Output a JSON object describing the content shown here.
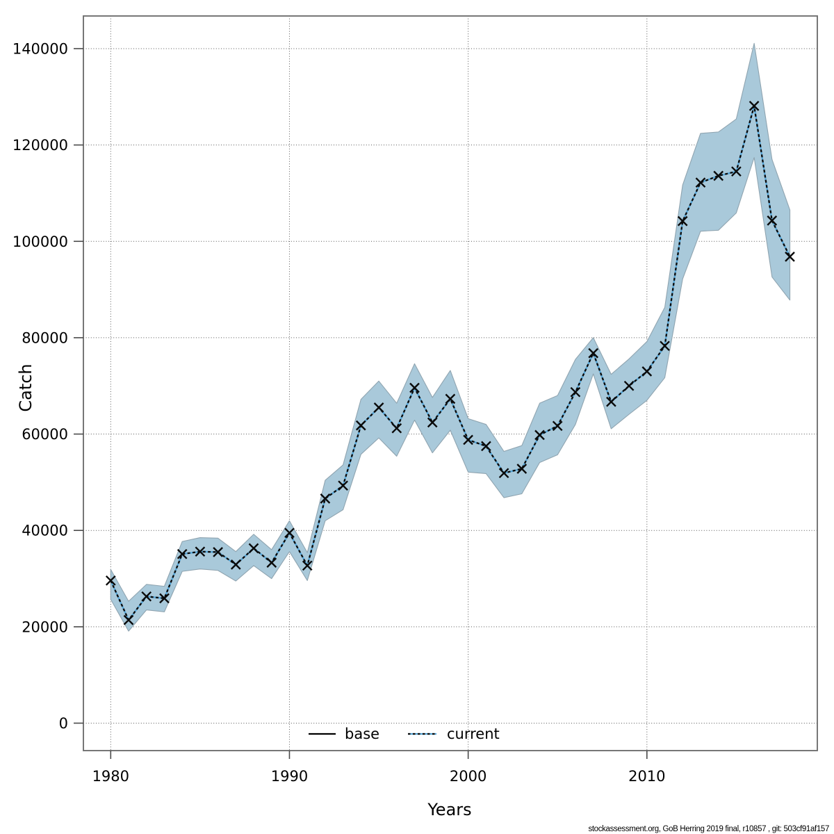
{
  "page": {
    "background": "#ffffff"
  },
  "axes": {
    "x_label": "Years",
    "y_label": "Catch",
    "x_tick_years": [
      1980,
      1990,
      2000,
      2010
    ],
    "y_ticks": [
      0,
      20000,
      40000,
      60000,
      80000,
      100000,
      120000,
      140000
    ]
  },
  "legend": {
    "items": [
      {
        "label": "base",
        "style": "solid",
        "color": "#000000"
      },
      {
        "label": "current",
        "style": "dotted",
        "color": "#54a4d6"
      }
    ]
  },
  "footer": {
    "credit": "stockassessment.org, GoB Herring 2019 final, r10857 , git: 503cf91af157"
  },
  "colors": {
    "band_fill": "#a9c9da",
    "band_edge": "#8fa4b0",
    "current_line": "#54a4d6",
    "dash_overlay": "#0a0a0a",
    "marker": "#0a0a0a",
    "grid": "#555555",
    "frame": "#707070",
    "tick": "#4a4a4a",
    "text": "#000000"
  },
  "chart_data": {
    "type": "line",
    "title": "",
    "xlabel": "Years",
    "ylabel": "Catch",
    "xlim": [
      1978.4,
      2019.6
    ],
    "ylim": [
      -5700,
      146800
    ],
    "grid": true,
    "legend_position": "bottom-center-inside",
    "x": [
      1980,
      1981,
      1982,
      1983,
      1984,
      1985,
      1986,
      1987,
      1988,
      1989,
      1990,
      1991,
      1992,
      1993,
      1994,
      1995,
      1996,
      1997,
      1998,
      1999,
      2000,
      2001,
      2002,
      2003,
      2004,
      2005,
      2006,
      2007,
      2008,
      2009,
      2010,
      2011,
      2012,
      2013,
      2014,
      2015,
      2016,
      2017,
      2018
    ],
    "series": [
      {
        "name": "base",
        "style": "solid",
        "color": "#000000",
        "note": "coincides with current line"
      },
      {
        "name": "current",
        "style": "dotted",
        "color": "#54a4d6",
        "marker": "x",
        "values": [
          29600,
          21400,
          26300,
          25900,
          35100,
          35600,
          35500,
          32900,
          36300,
          33300,
          39500,
          32700,
          46600,
          49300,
          61800,
          65500,
          61200,
          69600,
          62400,
          67300,
          58800,
          57500,
          51900,
          52800,
          59800,
          61700,
          68700,
          76800,
          66700,
          70000,
          73000,
          78300,
          104200,
          112200,
          113600,
          114500,
          128100,
          104300,
          96800
        ],
        "ci_lower": [
          25700,
          19100,
          23500,
          23100,
          31500,
          32000,
          31700,
          29500,
          32700,
          30000,
          35600,
          29600,
          42000,
          44300,
          55800,
          59200,
          55400,
          62900,
          56100,
          60800,
          52100,
          51800,
          46800,
          47600,
          54100,
          55700,
          62000,
          72500,
          61100,
          64100,
          67000,
          71700,
          92200,
          102100,
          102300,
          105900,
          117400,
          92600,
          87800
        ],
        "ci_upper": [
          31900,
          25300,
          28800,
          28400,
          37700,
          38500,
          38400,
          35600,
          39200,
          36000,
          42000,
          35400,
          50400,
          53600,
          67200,
          71000,
          66400,
          74600,
          67600,
          73200,
          63200,
          62000,
          56400,
          57600,
          66400,
          68000,
          75500,
          80000,
          72400,
          75600,
          79200,
          86300,
          111700,
          122400,
          122700,
          125400,
          141100,
          117000,
          106500
        ]
      }
    ]
  }
}
